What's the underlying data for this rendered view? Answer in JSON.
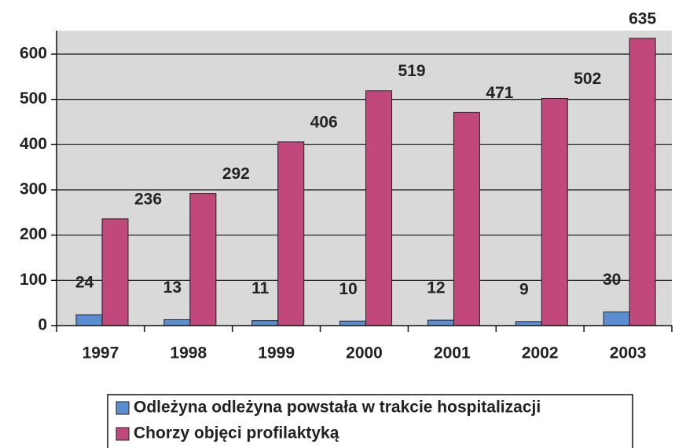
{
  "chart_data": {
    "type": "bar",
    "categories": [
      "1997",
      "1998",
      "1999",
      "2000",
      "2001",
      "2002",
      "2003"
    ],
    "series": [
      {
        "name": "Odleżyna odleżyna powstała w trakcie hospitalizacji",
        "color": "#5b8ed0",
        "values": [
          24,
          13,
          11,
          10,
          12,
          9,
          30
        ]
      },
      {
        "name": "Chorzy objęci profilaktyką",
        "color": "#c0487a",
        "values": [
          236,
          292,
          406,
          519,
          471,
          502,
          635
        ]
      }
    ],
    "ylim": [
      0,
      652
    ],
    "yticks": [
      0,
      100,
      200,
      300,
      400,
      500,
      600
    ],
    "grid": true,
    "legend": "bottom"
  }
}
